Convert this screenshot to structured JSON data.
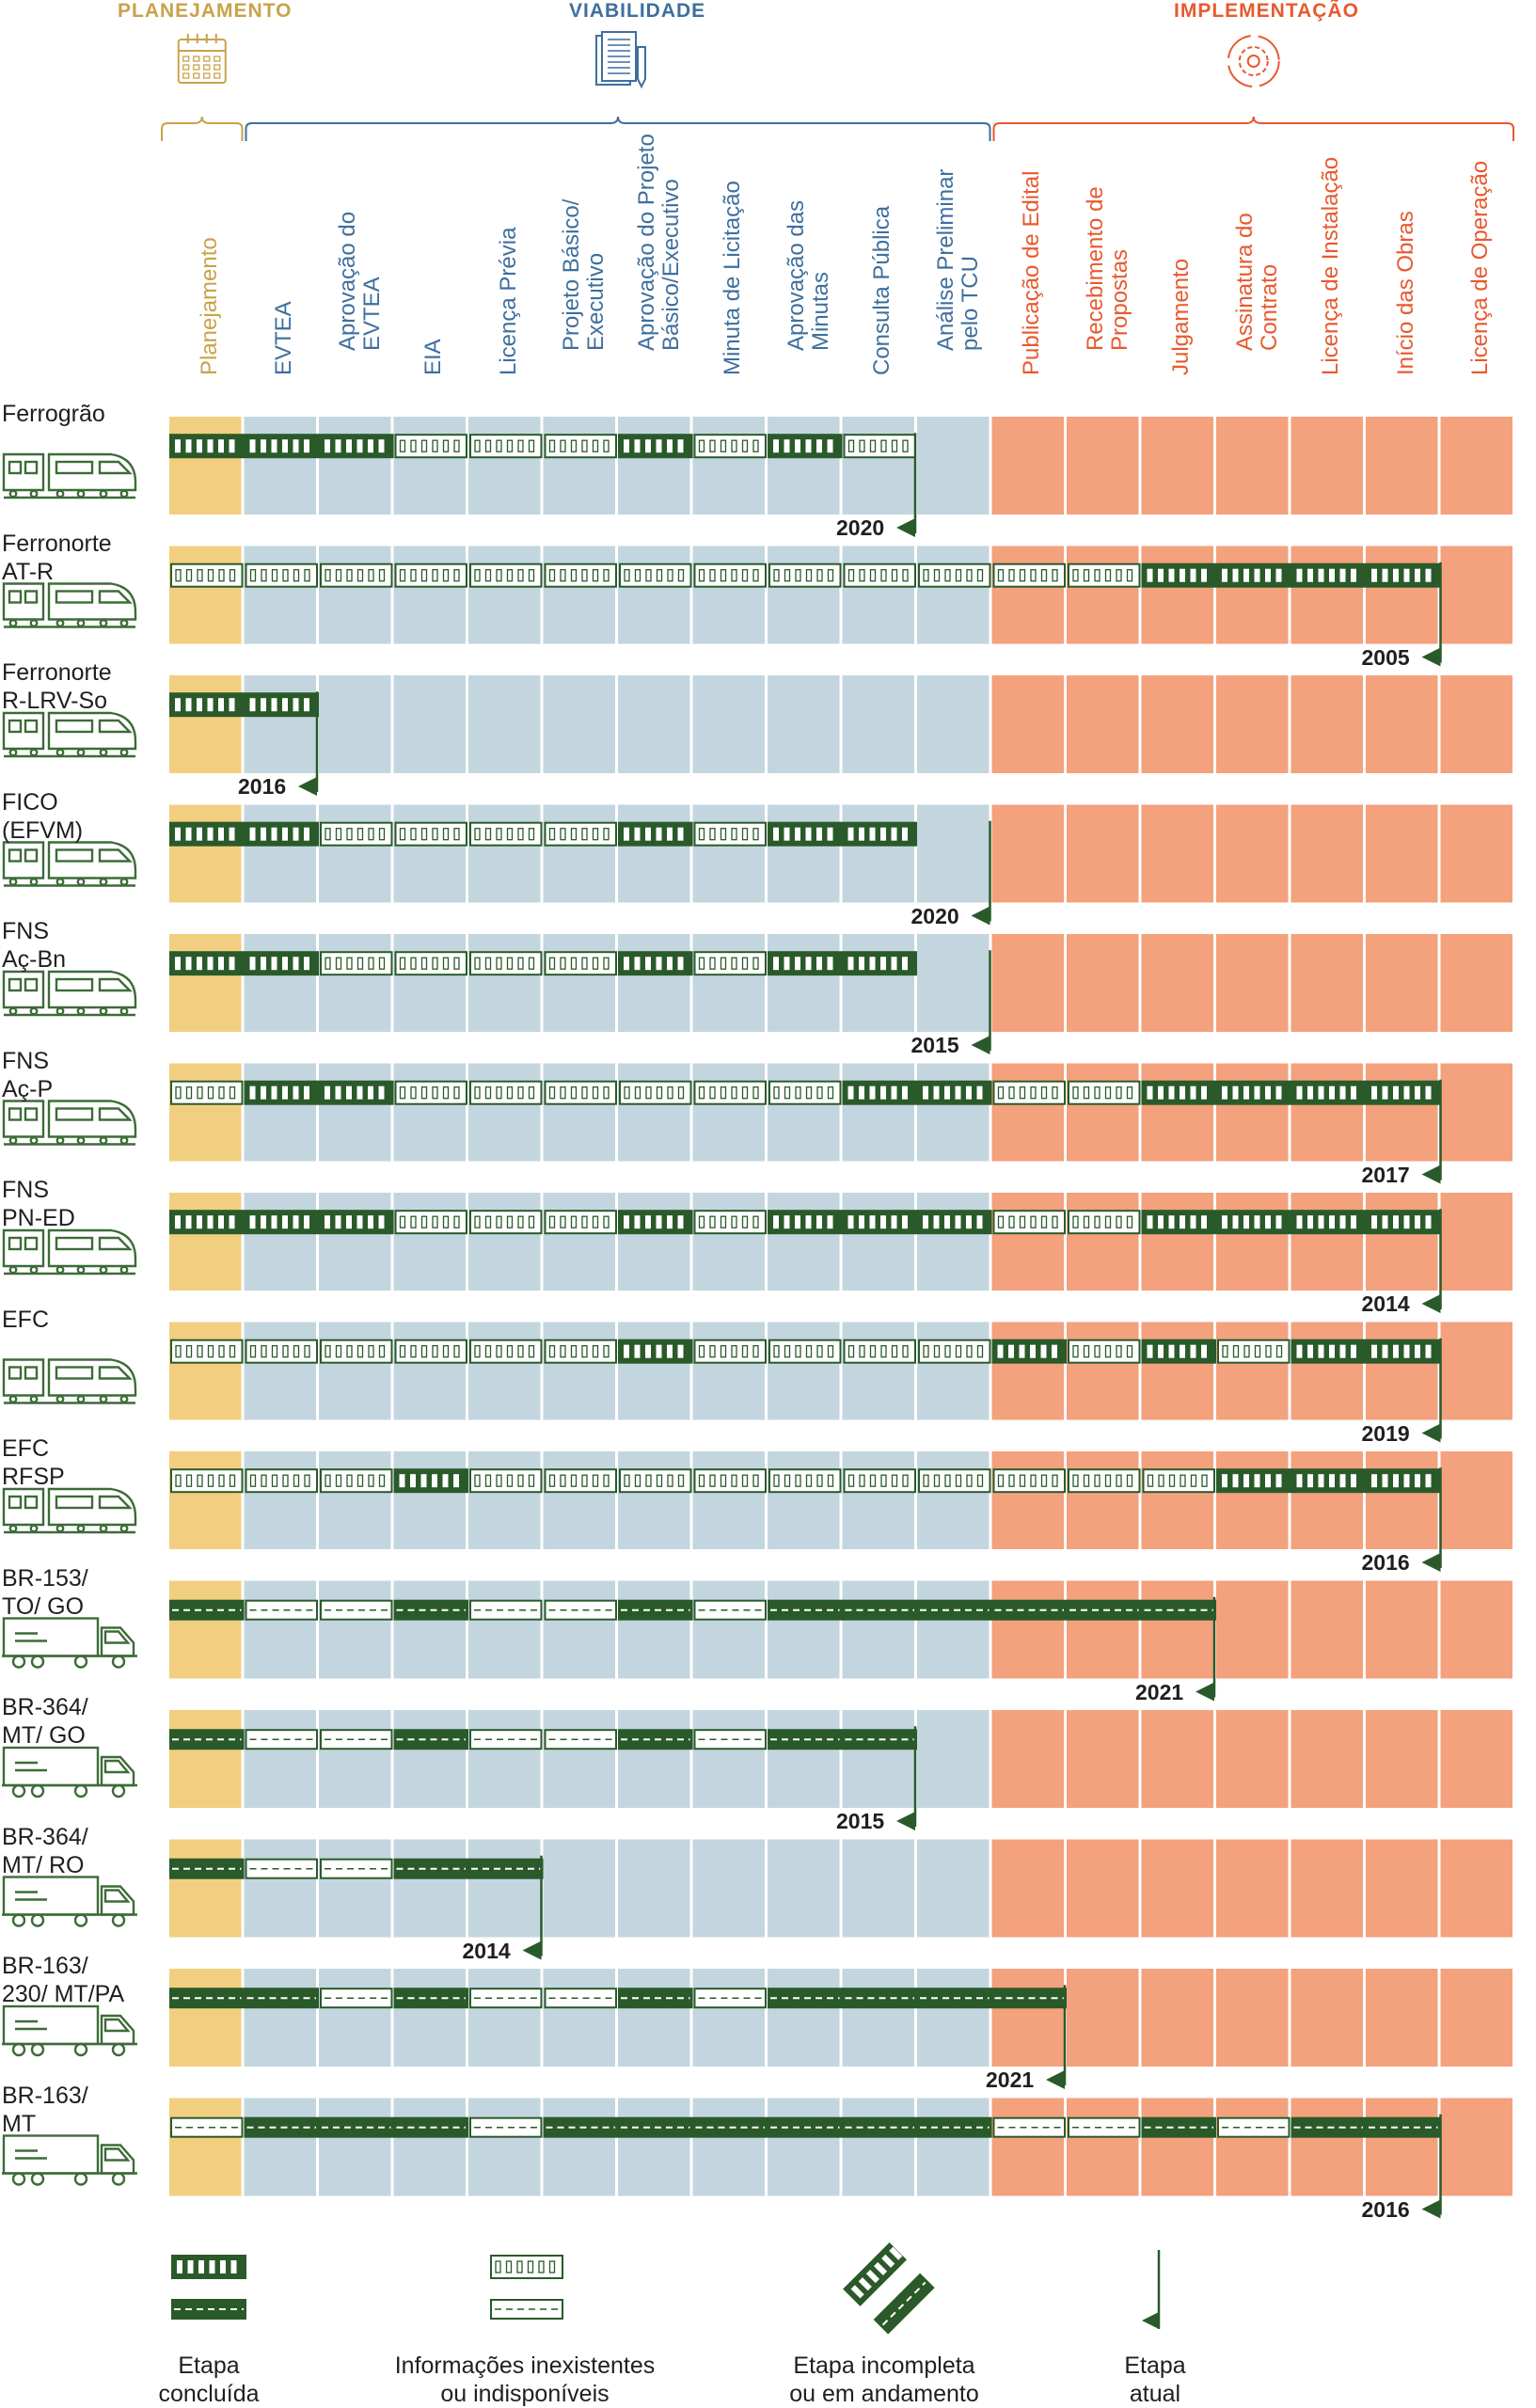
{
  "phases": [
    {
      "name": "PLANEJAMENTO",
      "color": "#c9a24a",
      "icon": "calendar-icon"
    },
    {
      "name": "VIABILIDADE",
      "color": "#3e6f9e",
      "icon": "document-pen-icon"
    },
    {
      "name": "IMPLEMENTAÇÃO",
      "color": "#e8592e",
      "icon": "gear-cycle-icon"
    }
  ],
  "columns": [
    {
      "label": "Planejamento",
      "phase": 0
    },
    {
      "label": "EVTEA",
      "phase": 1
    },
    {
      "label": "Aprovação do\nEVTEA",
      "phase": 1
    },
    {
      "label": "EIA",
      "phase": 1
    },
    {
      "label": "Licença Prévia",
      "phase": 1
    },
    {
      "label": "Projeto Básico/\nExecutivo",
      "phase": 1
    },
    {
      "label": "Aprovação do Projeto\nBásico/Executivo",
      "phase": 1
    },
    {
      "label": "Minuta de Licitação",
      "phase": 1
    },
    {
      "label": "Aprovação das\nMinutas",
      "phase": 1
    },
    {
      "label": "Consulta Pública",
      "phase": 1
    },
    {
      "label": "Análise Preliminar\npelo TCU",
      "phase": 1
    },
    {
      "label": "Publicação de Edital",
      "phase": 2
    },
    {
      "label": "Recebimento de\nPropostas",
      "phase": 2
    },
    {
      "label": "Julgamento",
      "phase": 2
    },
    {
      "label": "Assinatura do\nContrato",
      "phase": 2
    },
    {
      "label": "Licença de Instalação",
      "phase": 2
    },
    {
      "label": "Início das Obras",
      "phase": 2
    },
    {
      "label": "Licença de Operação",
      "phase": 2
    }
  ],
  "rows": [
    {
      "name": "Ferrogrão",
      "mode": "rail",
      "stages": "CCCUUUCUCU-------",
      "current_stage": 10,
      "year": "2020"
    },
    {
      "name": "Ferronorte\nAT-R",
      "mode": "rail",
      "stages": "UUUUUUUUUUUUUCCCC",
      "current_stage": 17,
      "year": "2005"
    },
    {
      "name": "Ferronorte\nR-LRV-So",
      "mode": "rail",
      "stages": "CC---------------",
      "current_stage": 2,
      "year": "2016"
    },
    {
      "name": "FICO\n(EFVM)",
      "mode": "rail",
      "stages": "CCUUUUCUCC-------",
      "current_stage": 11,
      "year": "2020"
    },
    {
      "name": "FNS\nAç-Bn",
      "mode": "rail",
      "stages": "CCUUUUCUCC-------",
      "current_stage": 11,
      "year": "2015"
    },
    {
      "name": "FNS\nAç-P",
      "mode": "rail",
      "stages": "UCCUUUUUUCCUUCCCC",
      "current_stage": 17,
      "year": "2017"
    },
    {
      "name": "FNS\nPN-ED",
      "mode": "rail",
      "stages": "CCCUUUCUCCCUUCCCC",
      "current_stage": 17,
      "year": "2014"
    },
    {
      "name": "EFC",
      "mode": "rail",
      "stages": "UUUUUUCUUUUCUCUCC",
      "current_stage": 17,
      "year": "2019"
    },
    {
      "name": "EFC\nRFSP",
      "mode": "rail",
      "stages": "UUUCUUUUUUUUUUCCC",
      "current_stage": 17,
      "year": "2016"
    },
    {
      "name": "BR-153/\nTO/ GO",
      "mode": "road",
      "stages": "CUUCUUCUCCCCCC---",
      "current_stage": 14,
      "year": "2021"
    },
    {
      "name": "BR-364/\nMT/ GO",
      "mode": "road",
      "stages": "CUUCUUCUCC-------",
      "current_stage": 10,
      "year": "2015"
    },
    {
      "name": "BR-364/\nMT/ RO",
      "mode": "road",
      "stages": "CUUCC------------",
      "current_stage": 5,
      "year": "2014"
    },
    {
      "name": "BR-163/\n230/ MT/PA",
      "mode": "road",
      "stages": "CCUCUUCUCCCC-----",
      "current_stage": 12,
      "year": "2021"
    },
    {
      "name": "BR-163/\nMT",
      "mode": "road",
      "stages": "UCCCUCCCCCCUUCUCC",
      "current_stage": 17,
      "year": "2016"
    }
  ],
  "legend": [
    {
      "key": "done",
      "label": "Etapa\nconcluída"
    },
    {
      "key": "unavailable",
      "label": "Informações inexistentes\nou indisponíveis"
    },
    {
      "key": "incomplete",
      "label": "Etapa incompleta\nou em andamento"
    },
    {
      "key": "current",
      "label": "Etapa\natual"
    }
  ],
  "colors": {
    "planning_bg": "#f2cf80",
    "viability_bg": "#c3d6df",
    "implementation_bg": "#f4a17d",
    "track_green": "#2a5a2a",
    "icon_green": "#3d6b38"
  }
}
